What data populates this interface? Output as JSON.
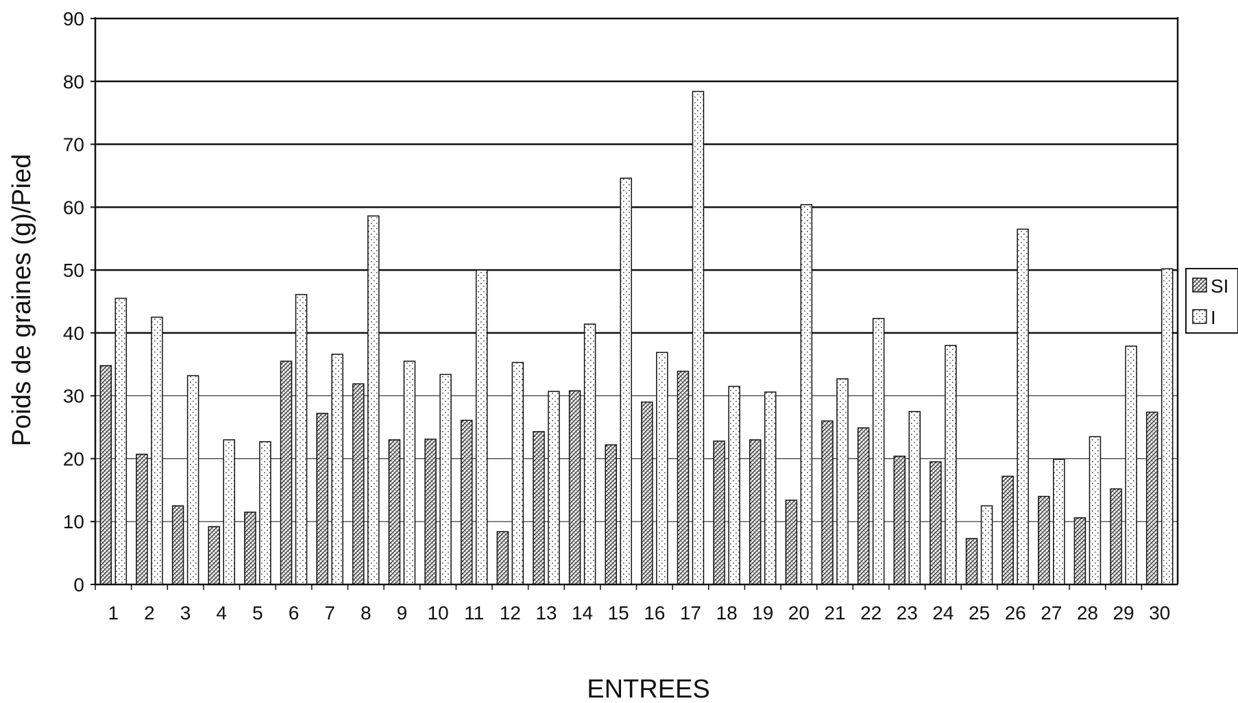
{
  "chart_data": {
    "type": "bar",
    "title": "",
    "xlabel": "ENTREES",
    "ylabel": "Poids de graines (g)/Pied",
    "ylim": [
      0,
      90
    ],
    "yticks": [
      0,
      10,
      20,
      30,
      40,
      50,
      60,
      70,
      80,
      90
    ],
    "grid": true,
    "legend_position": "right",
    "categories": [
      "1",
      "2",
      "3",
      "4",
      "5",
      "6",
      "7",
      "8",
      "9",
      "10",
      "11",
      "12",
      "13",
      "14",
      "15",
      "16",
      "17",
      "18",
      "19",
      "20",
      "21",
      "22",
      "23",
      "24",
      "25",
      "26",
      "27",
      "28",
      "29",
      "30"
    ],
    "series": [
      {
        "name": "SI",
        "pattern": "dense-crosshatch",
        "values": [
          34.8,
          20.7,
          12.5,
          9.2,
          11.5,
          35.5,
          27.2,
          31.9,
          23.0,
          23.1,
          26.1,
          8.4,
          24.3,
          30.8,
          22.2,
          29.0,
          33.9,
          22.8,
          23.0,
          13.4,
          26.0,
          24.9,
          20.4,
          19.5,
          7.3,
          17.2,
          14.0,
          10.6,
          15.2,
          27.4
        ]
      },
      {
        "name": "I",
        "pattern": "sparse-dots",
        "values": [
          45.5,
          42.5,
          33.2,
          23.0,
          22.7,
          46.1,
          36.6,
          58.6,
          35.5,
          33.4,
          50.0,
          35.3,
          30.7,
          41.4,
          64.6,
          36.9,
          78.4,
          31.5,
          30.6,
          60.4,
          32.7,
          42.3,
          27.5,
          38.0,
          12.5,
          56.5,
          19.9,
          23.5,
          37.9,
          50.2
        ]
      }
    ]
  }
}
